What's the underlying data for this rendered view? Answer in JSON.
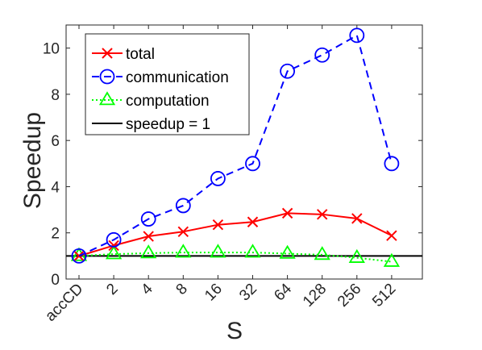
{
  "chart_data": {
    "type": "line",
    "title": "",
    "xlabel": "S",
    "ylabel": "Speedup",
    "categories": [
      "accCD",
      "2",
      "4",
      "8",
      "16",
      "32",
      "64",
      "128",
      "256",
      "512"
    ],
    "ylim": [
      0,
      11
    ],
    "yticks": [
      0,
      2,
      4,
      6,
      8,
      10
    ],
    "grid": false,
    "legend_position": "top-left",
    "series": [
      {
        "name": "total",
        "color": "#ff0000",
        "line_style": "solid",
        "marker": "x",
        "values": [
          1.0,
          1.45,
          1.85,
          2.05,
          2.35,
          2.47,
          2.85,
          2.8,
          2.62,
          1.88
        ]
      },
      {
        "name": "communication",
        "color": "#0000ff",
        "line_style": "dashed",
        "marker": "circle",
        "values": [
          1.0,
          1.7,
          2.6,
          3.18,
          4.35,
          5.0,
          9.0,
          9.7,
          10.55,
          5.0
        ]
      },
      {
        "name": "computation",
        "color": "#00ff00",
        "line_style": "dotted",
        "marker": "triangle",
        "values": [
          1.0,
          1.08,
          1.12,
          1.15,
          1.15,
          1.15,
          1.1,
          1.05,
          0.92,
          0.75
        ]
      },
      {
        "name": "speedup = 1",
        "color": "#000000",
        "line_style": "solid",
        "marker": "none",
        "values": [
          1,
          1,
          1,
          1,
          1,
          1,
          1,
          1,
          1,
          1
        ]
      }
    ]
  }
}
